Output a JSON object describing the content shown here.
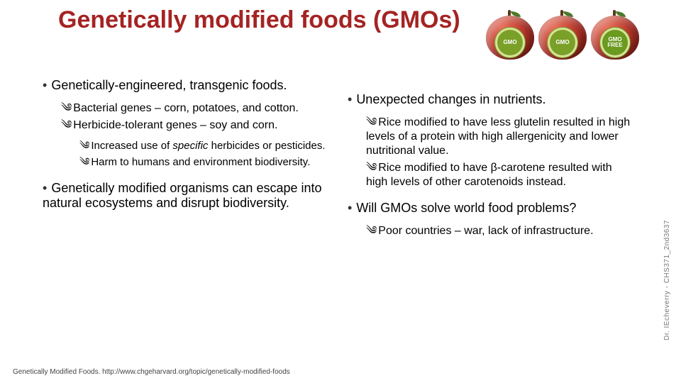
{
  "title_color": "#a52323",
  "title": "Genetically modified foods (GMOs)",
  "apples": [
    {
      "body_color": "#b33228",
      "sticker_bg": "#7aa028",
      "sticker_ring": "#d9e29a",
      "sticker_text": "GMO"
    },
    {
      "body_color": "#b33228",
      "sticker_bg": "#7aa028",
      "sticker_ring": "#d9e29a",
      "sticker_text": "GMO"
    },
    {
      "body_color": "#b33228",
      "sticker_bg": "#6a9a1e",
      "sticker_ring": "#d9e29a",
      "sticker_text": "GMO FREE"
    }
  ],
  "left": {
    "p1": "Genetically-engineered, transgenic foods.",
    "s1a": "Bacterial genes – corn, potatoes, and cotton.",
    "s1b": "Herbicide-tolerant genes – soy and corn.",
    "t1a_pre": "Increased use of ",
    "t1a_em": "specific",
    "t1a_post": " herbicides or pesticides.",
    "t1b": "Harm to humans and environment biodiversity.",
    "p2": "Genetically modified organisms can escape into natural ecosystems and disrupt biodiversity."
  },
  "right": {
    "p1": "Unexpected changes in nutrients.",
    "s1a": "Rice modified to have less glutelin resulted in high levels of a protein with high allergenicity and lower nutritional value.",
    "s1b_pre": "Rice modified to have ",
    "s1b_sym": "β",
    "s1b_post": "-carotene resulted with high levels of other carotenoids instead.",
    "p2": "Will GMOs solve world food problems?",
    "s2a": "Poor countries – war, lack of infrastructure."
  },
  "footer": "Genetically Modified Foods. http://www.chgeharvard.org/topic/genetically-modified-foods",
  "sidetext": "Dr. IEcheverry - CHS371_2nd3637",
  "flourish_glyph": "༄",
  "bullet_glyph": "•"
}
